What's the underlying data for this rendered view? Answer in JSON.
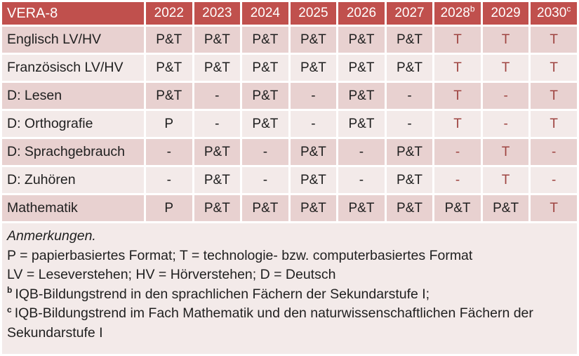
{
  "colors": {
    "header_bg": "#C0504D",
    "band_dark": "#E8D1D0",
    "band_light": "#F3EAE9",
    "accent_text": "#9E4441",
    "text": "#1F1F1F",
    "gap": "#FFFFFF"
  },
  "table": {
    "title": "VERA-8",
    "columns": [
      {
        "label": "2022",
        "sup": ""
      },
      {
        "label": "2023",
        "sup": ""
      },
      {
        "label": "2024",
        "sup": ""
      },
      {
        "label": "2025",
        "sup": ""
      },
      {
        "label": "2026",
        "sup": ""
      },
      {
        "label": "2027",
        "sup": ""
      },
      {
        "label": "2028",
        "sup": "b"
      },
      {
        "label": "2029",
        "sup": ""
      },
      {
        "label": "2030",
        "sup": "c"
      }
    ],
    "rows": [
      {
        "label": "Englisch LV/HV",
        "cells": [
          {
            "text": "P&T",
            "red": false
          },
          {
            "text": "P&T",
            "red": false
          },
          {
            "text": "P&T",
            "red": false
          },
          {
            "text": "P&T",
            "red": false
          },
          {
            "text": "P&T",
            "red": false
          },
          {
            "text": "P&T",
            "red": false
          },
          {
            "text": "T",
            "red": true
          },
          {
            "text": "T",
            "red": true
          },
          {
            "text": "T",
            "red": true
          }
        ]
      },
      {
        "label": "Französisch LV/HV",
        "cells": [
          {
            "text": "P&T",
            "red": false
          },
          {
            "text": "P&T",
            "red": false
          },
          {
            "text": "P&T",
            "red": false
          },
          {
            "text": "P&T",
            "red": false
          },
          {
            "text": "P&T",
            "red": false
          },
          {
            "text": "P&T",
            "red": false
          },
          {
            "text": "T",
            "red": true
          },
          {
            "text": "T",
            "red": true
          },
          {
            "text": "T",
            "red": true
          }
        ]
      },
      {
        "label": "D: Lesen",
        "cells": [
          {
            "text": "P&T",
            "red": false
          },
          {
            "text": "-",
            "red": false
          },
          {
            "text": "P&T",
            "red": false
          },
          {
            "text": "-",
            "red": false
          },
          {
            "text": "P&T",
            "red": false
          },
          {
            "text": "-",
            "red": false
          },
          {
            "text": "T",
            "red": true
          },
          {
            "text": "-",
            "red": true
          },
          {
            "text": "T",
            "red": true
          }
        ]
      },
      {
        "label": "D: Orthografie",
        "cells": [
          {
            "text": "P",
            "red": false
          },
          {
            "text": "-",
            "red": false
          },
          {
            "text": "P&T",
            "red": false
          },
          {
            "text": "-",
            "red": false
          },
          {
            "text": "P&T",
            "red": false
          },
          {
            "text": "-",
            "red": false
          },
          {
            "text": "T",
            "red": true
          },
          {
            "text": "-",
            "red": true
          },
          {
            "text": "T",
            "red": true
          }
        ]
      },
      {
        "label": "D: Sprachgebrauch",
        "cells": [
          {
            "text": "-",
            "red": false
          },
          {
            "text": "P&T",
            "red": false
          },
          {
            "text": "-",
            "red": false
          },
          {
            "text": "P&T",
            "red": false
          },
          {
            "text": "-",
            "red": false
          },
          {
            "text": "P&T",
            "red": false
          },
          {
            "text": "-",
            "red": true
          },
          {
            "text": "T",
            "red": true
          },
          {
            "text": "-",
            "red": true
          }
        ]
      },
      {
        "label": "D: Zuhören",
        "cells": [
          {
            "text": "-",
            "red": false
          },
          {
            "text": "P&T",
            "red": false
          },
          {
            "text": "-",
            "red": false
          },
          {
            "text": "P&T",
            "red": false
          },
          {
            "text": "-",
            "red": false
          },
          {
            "text": "P&T",
            "red": false
          },
          {
            "text": "-",
            "red": true
          },
          {
            "text": "T",
            "red": true
          },
          {
            "text": "-",
            "red": true
          }
        ]
      },
      {
        "label": "Mathematik",
        "cells": [
          {
            "text": "P",
            "red": false
          },
          {
            "text": "P&T",
            "red": false
          },
          {
            "text": "P&T",
            "red": false
          },
          {
            "text": "P&T",
            "red": false
          },
          {
            "text": "P&T",
            "red": false
          },
          {
            "text": "P&T",
            "red": false
          },
          {
            "text": "P&T",
            "red": false
          },
          {
            "text": "P&T",
            "red": false
          },
          {
            "text": "T",
            "red": true
          }
        ]
      }
    ]
  },
  "notes": {
    "heading": "Anmerkungen.",
    "line1": "P = papierbasiertes Format; T = technologie- bzw. computerbasiertes Format",
    "line2": "LV = Leseverstehen; HV = Hörverstehen; D = Deutsch",
    "note_b": {
      "sup": "b",
      "text": "IQB-Bildungstrend in den sprachlichen Fächern der Sekundarstufe I;"
    },
    "note_c": {
      "sup": "c",
      "text": "IQB-Bildungstrend im Fach Mathematik und den naturwissenschaftlichen Fächern der Sekundarstufe I"
    }
  }
}
